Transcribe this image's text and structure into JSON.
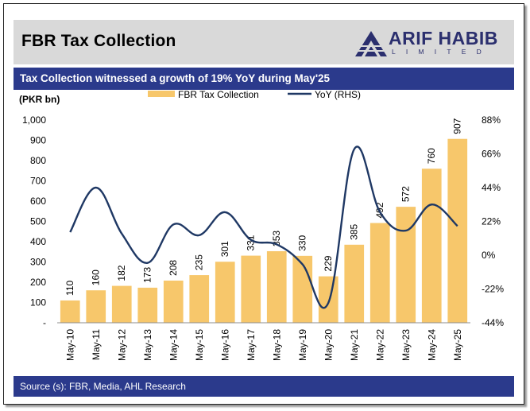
{
  "header": {
    "title": "FBR Tax Collection",
    "logo_name": "ARIF HABIB",
    "logo_sub": "LIMITED"
  },
  "subtitle": "Tax Collection witnessed a growth of 19% YoY during May'25",
  "source": "Source (s): FBR, Media, AHL Research",
  "colors": {
    "bar": "#f7c76b",
    "line": "#1f3864",
    "banner": "#2b3a8c",
    "header_bg": "#d9d9d9"
  },
  "chart_data": {
    "type": "bar",
    "ylabel": "(PKR bn)",
    "legend_position": "top",
    "categories": [
      "May-10",
      "May-11",
      "May-12",
      "May-13",
      "May-14",
      "May-15",
      "May-16",
      "May-17",
      "May-18",
      "May-19",
      "May-20",
      "May-21",
      "May-22",
      "May-23",
      "May-24",
      "May-25"
    ],
    "series": [
      {
        "name": "FBR Tax Collection",
        "type": "bar",
        "axis": "left",
        "values": [
          110,
          160,
          182,
          173,
          208,
          235,
          301,
          331,
          353,
          330,
          229,
          385,
          492,
          572,
          760,
          907
        ],
        "labels": [
          "110",
          "160",
          "182",
          "173",
          "208",
          "235",
          "301",
          "331",
          "353",
          "330",
          "229",
          "385",
          "492",
          "572",
          "760",
          "907"
        ]
      },
      {
        "name": "YoY (RHS)",
        "type": "line",
        "axis": "right",
        "values": [
          15,
          44,
          14,
          -5,
          20,
          13,
          28,
          10,
          7,
          -6,
          -31,
          69,
          28,
          16,
          33,
          19
        ]
      }
    ],
    "ylim": [
      0,
      1000
    ],
    "yticks": [
      0,
      100,
      200,
      300,
      400,
      500,
      600,
      700,
      800,
      900,
      1000
    ],
    "ytick_labels": [
      "-",
      "100",
      "200",
      "300",
      "400",
      "500",
      "600",
      "700",
      "800",
      "900",
      "1,000"
    ],
    "y2lim": [
      -44,
      88
    ],
    "y2ticks": [
      -44,
      -22,
      0,
      22,
      44,
      66,
      88
    ],
    "y2tick_labels": [
      "-44%",
      "-22%",
      "0%",
      "22%",
      "44%",
      "66%",
      "88%"
    ],
    "grid": false
  }
}
